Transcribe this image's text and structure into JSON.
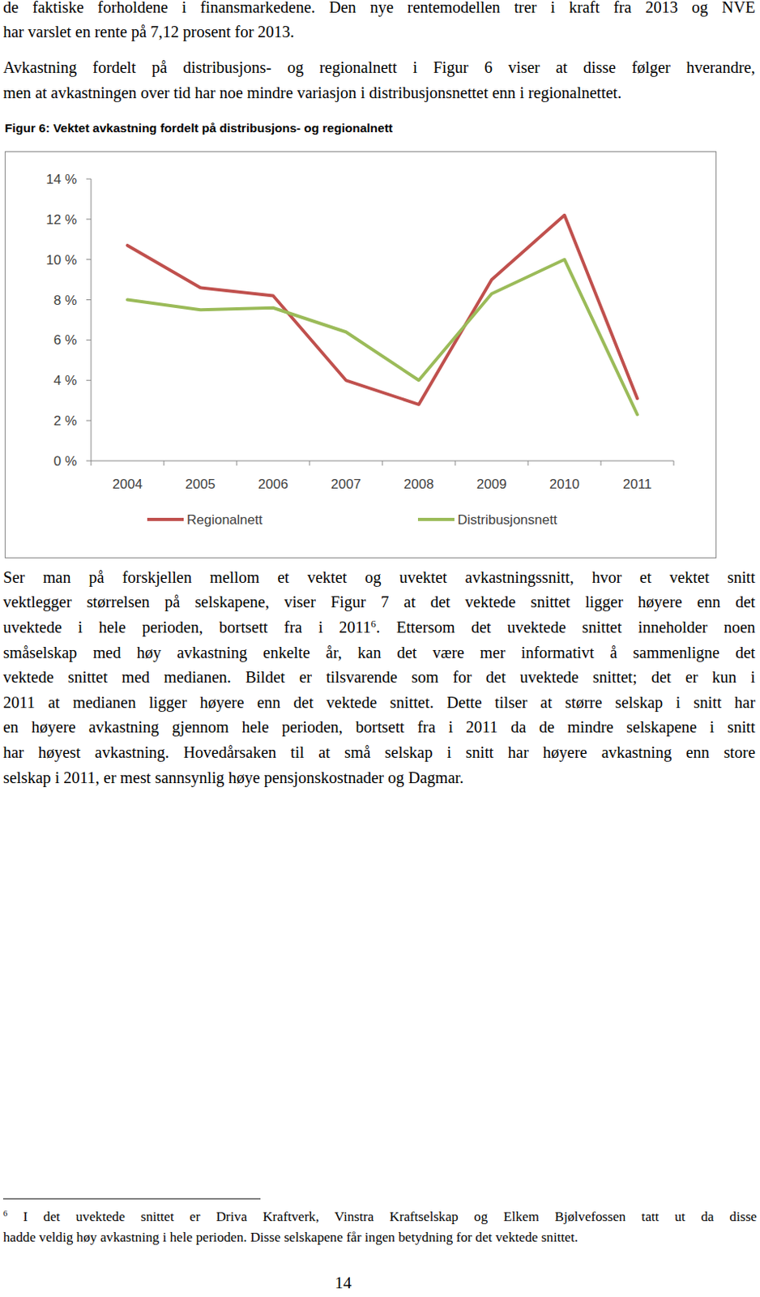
{
  "paragraphs_before": [
    {
      "lines": [
        [
          "de faktiske forholdene i finansmarkedene. Den nye rentemodellen trer i kraft fra 2013 og NVE"
        ],
        [
          "har varslet en rente på 7,12 prosent for 2013."
        ]
      ]
    },
    {
      "lines": [
        [
          "Avkastning fordelt på distribusjons- og regionalnett i Figur 6 viser at disse følger hverandre,"
        ],
        [
          "men at avkastningen over tid har noe mindre variasjon i distribusjonsnettet enn i regionalnettet."
        ]
      ]
    }
  ],
  "figure_caption": "Figur 6: Vektet avkastning fordelt på distribusjons- og regionalnett",
  "chart_data": {
    "type": "line",
    "categories": [
      "2004",
      "2005",
      "2006",
      "2007",
      "2008",
      "2009",
      "2010",
      "2011"
    ],
    "series": [
      {
        "name": "Regionalnett",
        "color": "#c0504d",
        "values": [
          10.7,
          8.6,
          8.2,
          4.0,
          2.8,
          9.0,
          12.2,
          3.1
        ]
      },
      {
        "name": "Distribusjonsnett",
        "color": "#9bbb59",
        "values": [
          8.0,
          7.5,
          7.6,
          6.4,
          4.0,
          8.3,
          10.0,
          2.3
        ]
      }
    ],
    "ylim": [
      0,
      14
    ],
    "yticks": [
      {
        "value": 0,
        "label": "0 %"
      },
      {
        "value": 2,
        "label": "2 %"
      },
      {
        "value": 4,
        "label": "4 %"
      },
      {
        "value": 6,
        "label": "6 %"
      },
      {
        "value": 8,
        "label": "8 %"
      },
      {
        "value": 10,
        "label": "10 %"
      },
      {
        "value": 12,
        "label": "12 %"
      },
      {
        "value": 14,
        "label": "14 %"
      }
    ],
    "grid": false,
    "legend": "bottom"
  },
  "paragraphs_after": [
    {
      "lines": [
        [
          "Ser man på forskjellen mellom et vektet og uvektet avkastningssnitt, hvor et vektet snitt"
        ],
        [
          "vektlegger størrelsen på selskapene, viser Figur 7 at det vektede snittet ligger høyere enn det"
        ],
        [
          "uvektede i hele perioden, bortsett fra i 2011",
          "6",
          ". Ettersom det uvektede snittet inneholder noen"
        ],
        [
          "småselskap med høy avkastning enkelte år, kan det være mer informativt å sammenligne det"
        ],
        [
          "vektede snittet med medianen. Bildet er tilsvarende som for det uvektede snittet; det er kun i"
        ],
        [
          "2011 at medianen ligger høyere enn det vektede snittet. Dette tilser at større selskap i snitt har"
        ],
        [
          "en høyere avkastning gjennom hele perioden, bortsett fra i 2011 da de mindre selskapene i snitt"
        ],
        [
          "har høyest avkastning. Hovedårsaken til at små selskap i snitt har høyere avkastning enn store"
        ],
        [
          "selskap i 2011, er mest sannsynlig høye pensjonskostnader og Dagmar."
        ]
      ]
    }
  ],
  "footnote": {
    "number": "6",
    "lines": [
      "I det uvektede snittet er Driva Kraftverk, Vinstra Kraftselskap og Elkem Bjølvefossen tatt ut da disse",
      "hadde veldig høy avkastning i hele perioden. Disse selskapene får ingen betydning for det vektede snittet."
    ]
  },
  "page_number": "14"
}
